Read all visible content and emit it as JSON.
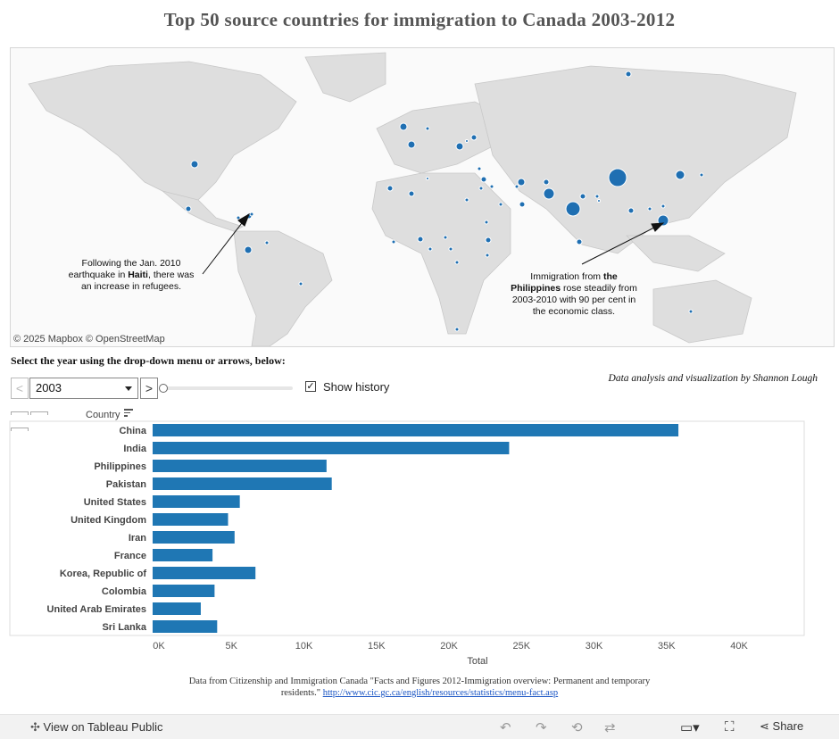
{
  "title": "Top 50 source countries for immigration to Canada 2003-2012",
  "map": {
    "credit": "© 2025 Mapbox © OpenStreetMap",
    "annotation_haiti": {
      "line1": "Following the Jan. 2010",
      "line2a": "earthquake in ",
      "line2b": "Haiti",
      "line2c": ", there was",
      "line3": "an increase in refugees."
    },
    "annotation_philippines": {
      "line1a": "Immigration from ",
      "line1b": "the",
      "line2a": "Philippines",
      "line2b": " rose steadily from",
      "line3": "2003-2010 with 90 per cent in",
      "line4": "the economic class."
    },
    "dot_color": "#1f6fb2"
  },
  "instructions": "Select the year using the drop-down menu or arrows, below:",
  "credit": "Data analysis and visualization by Shannon Lough",
  "controls": {
    "year": "2003",
    "prev_glyph": "<",
    "next_glyph": ">",
    "show_history_label": "Show history",
    "checkmark": "✓"
  },
  "country_header": "Country",
  "chart_data": {
    "type": "bar",
    "orientation": "horizontal",
    "categories": [
      "China",
      "India",
      "Philippines",
      "Pakistan",
      "United States",
      "United Kingdom",
      "Iran",
      "France",
      "Korea, Republic of",
      "Colombia",
      "United Arab Emirates",
      "Sri Lanka"
    ],
    "values": [
      36250,
      24580,
      11990,
      12350,
      6010,
      5200,
      5650,
      4130,
      7090,
      4270,
      3320,
      4450
    ],
    "xlabel": "Total",
    "xlim": [
      0,
      40000
    ],
    "xticks": [
      "0K",
      "5K",
      "10K",
      "15K",
      "20K",
      "25K",
      "30K",
      "35K",
      "40K"
    ],
    "bar_color": "#1f77b4"
  },
  "footer": {
    "line1": "Data from Citizenship and Immigration Canada \"Facts and Figures 2012-Immigration overview: Permanent and temporary",
    "line2": "residents.\"",
    "link": "http://www.cic.gc.ca/english/resources/statistics/menu-fact.asp"
  },
  "toolbar": {
    "view_label": "View on Tableau Public",
    "share_label": "Share"
  }
}
